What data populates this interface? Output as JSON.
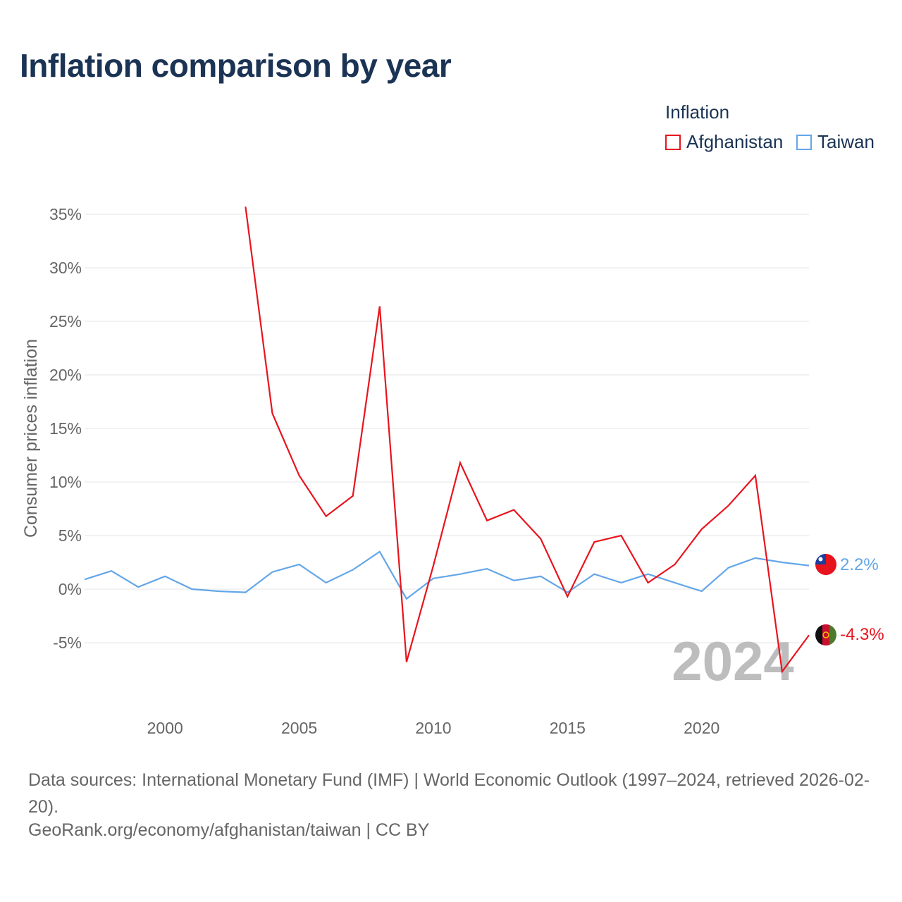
{
  "title": "Inflation comparison by year",
  "legend": {
    "title": "Inflation",
    "items": [
      {
        "label": "Afghanistan",
        "color": "#e8141d"
      },
      {
        "label": "Taiwan",
        "color": "#64a6e8"
      }
    ]
  },
  "chart_data": {
    "type": "line",
    "title": "Inflation comparison by year",
    "xlabel": "",
    "ylabel": "Consumer prices inflation",
    "xlim": [
      1997,
      2024
    ],
    "ylim": [
      -8,
      36
    ],
    "x_ticks": [
      2000,
      2005,
      2010,
      2015,
      2020
    ],
    "y_ticks": [
      35,
      30,
      25,
      20,
      15,
      10,
      5,
      0,
      -5
    ],
    "y_tick_labels": [
      "35%",
      "30%",
      "25%",
      "20%",
      "15%",
      "10%",
      "5%",
      "0%",
      "-5%"
    ],
    "grid": true,
    "watermark_year": "2024",
    "series": [
      {
        "name": "Afghanistan",
        "color": "#e8141d",
        "end_label": "-4.3%",
        "flag": "afghanistan-flag-icon",
        "x": [
          2003,
          2004,
          2005,
          2006,
          2007,
          2008,
          2009,
          2010,
          2011,
          2012,
          2013,
          2014,
          2015,
          2016,
          2017,
          2018,
          2019,
          2020,
          2021,
          2022,
          2023,
          2024
        ],
        "values": [
          35.7,
          16.4,
          10.6,
          6.8,
          8.7,
          26.4,
          -6.8,
          2.2,
          11.8,
          6.4,
          7.4,
          4.7,
          -0.7,
          4.4,
          5.0,
          0.6,
          2.3,
          5.6,
          7.8,
          10.6,
          -7.7,
          -4.3
        ]
      },
      {
        "name": "Taiwan",
        "color": "#64a6e8",
        "end_label": "2.2%",
        "flag": "taiwan-flag-icon",
        "x": [
          1997,
          1998,
          1999,
          2000,
          2001,
          2002,
          2003,
          2004,
          2005,
          2006,
          2007,
          2008,
          2009,
          2010,
          2011,
          2012,
          2013,
          2014,
          2015,
          2016,
          2017,
          2018,
          2019,
          2020,
          2021,
          2022,
          2023,
          2024
        ],
        "values": [
          0.9,
          1.7,
          0.2,
          1.2,
          0.0,
          -0.2,
          -0.3,
          1.6,
          2.3,
          0.6,
          1.8,
          3.5,
          -0.9,
          1.0,
          1.4,
          1.9,
          0.8,
          1.2,
          -0.3,
          1.4,
          0.6,
          1.4,
          0.6,
          -0.2,
          2.0,
          2.9,
          2.5,
          2.2
        ]
      }
    ]
  },
  "footer": {
    "source": "Data sources: International Monetary Fund (IMF) | World Economic Outlook (1997–2024, retrieved 2026-02-20).",
    "credit": "GeoRank.org/economy/afghanistan/taiwan | CC BY"
  }
}
